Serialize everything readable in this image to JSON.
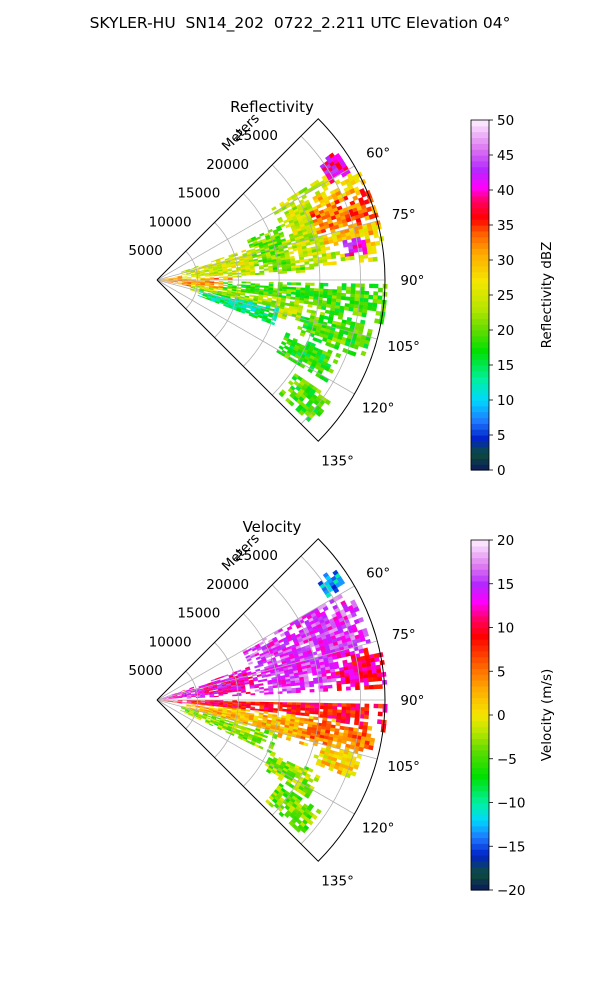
{
  "suptitle": "SKYLER-HU  SN14_202  0722_2.211 UTC Elevation 04°",
  "chart_data": [
    {
      "type": "polar_sector_radar",
      "title": "Reflectivity",
      "radial_axis_label": "Meters",
      "r_ticks": [
        5000,
        10000,
        15000,
        20000,
        25000
      ],
      "r_tick_labels": [
        "5000",
        "10000",
        "15000",
        "20000",
        "25000"
      ],
      "r_max": 28000,
      "theta_range_deg": [
        45,
        135
      ],
      "theta_ticks": [
        60,
        75,
        90,
        105,
        120,
        135
      ],
      "theta_tick_labels": [
        "60°",
        "75°",
        "90°",
        "105°",
        "120°",
        "135°"
      ],
      "grid": true,
      "colorbar": {
        "label": "Reflectivity dBZ",
        "range": [
          0,
          50
        ],
        "ticks": [
          0,
          5,
          10,
          15,
          20,
          25,
          30,
          35,
          40,
          45,
          50
        ],
        "tick_labels": [
          "0",
          "5",
          "10",
          "15",
          "20",
          "25",
          "30",
          "35",
          "40",
          "45",
          "50"
        ],
        "stops": [
          {
            "v": 0,
            "c": "#0a1a5c"
          },
          {
            "v": 2.5,
            "c": "#0d4d3a"
          },
          {
            "v": 4.5,
            "c": "#0022c8"
          },
          {
            "v": 7,
            "c": "#1e78ff"
          },
          {
            "v": 10,
            "c": "#00d7ff"
          },
          {
            "v": 13,
            "c": "#00f0a0"
          },
          {
            "v": 17,
            "c": "#00e000"
          },
          {
            "v": 20,
            "c": "#60dc00"
          },
          {
            "v": 23,
            "c": "#b4e600"
          },
          {
            "v": 27,
            "c": "#f5e600"
          },
          {
            "v": 31,
            "c": "#ffaa00"
          },
          {
            "v": 34,
            "c": "#ff5a00"
          },
          {
            "v": 36,
            "c": "#ff0000"
          },
          {
            "v": 38.5,
            "c": "#ff0064"
          },
          {
            "v": 40.5,
            "c": "#ff00ff"
          },
          {
            "v": 43,
            "c": "#b428ff"
          },
          {
            "v": 46,
            "c": "#dc78f0"
          },
          {
            "v": 50,
            "c": "#fff0ff"
          }
        ]
      },
      "echo_regions": [
        {
          "r0": 0,
          "r1": 9000,
          "t0": 80,
          "t1": 100,
          "v": 31
        },
        {
          "r0": 3000,
          "r1": 13000,
          "t0": 71,
          "t1": 87,
          "v": 25
        },
        {
          "r0": 12000,
          "r1": 19000,
          "t0": 66,
          "t1": 86,
          "v": 21
        },
        {
          "r0": 16000,
          "r1": 27000,
          "t0": 58,
          "t1": 84,
          "v": 24
        },
        {
          "r0": 21000,
          "r1": 28000,
          "t0": 62,
          "t1": 80,
          "v": 29
        },
        {
          "r0": 20000,
          "r1": 28000,
          "t0": 66,
          "t1": 74,
          "v": 33
        },
        {
          "r0": 24000,
          "r1": 27000,
          "t0": 54,
          "t1": 60,
          "v": 40
        },
        {
          "r0": 23000,
          "r1": 26000,
          "t0": 78,
          "t1": 82,
          "v": 41
        },
        {
          "r0": 8000,
          "r1": 28000,
          "t0": 91,
          "t1": 100,
          "v": 19
        },
        {
          "r0": 4000,
          "r1": 19000,
          "t0": 98,
          "t1": 106,
          "v": 23
        },
        {
          "r0": 5000,
          "r1": 15000,
          "t0": 103,
          "t1": 110,
          "v": 14
        },
        {
          "r0": 18000,
          "r1": 27000,
          "t0": 100,
          "t1": 110,
          "v": 19
        },
        {
          "r0": 17000,
          "r1": 24000,
          "t0": 112,
          "t1": 120,
          "v": 18
        },
        {
          "r0": 20000,
          "r1": 26000,
          "t0": 124,
          "t1": 132,
          "v": 19
        }
      ],
      "data_gaps": [
        {
          "r0": 10000,
          "r1": 28000,
          "t0": 87,
          "t1": 90
        }
      ]
    },
    {
      "type": "polar_sector_radar",
      "title": "Velocity",
      "radial_axis_label": "Meters",
      "r_ticks": [
        5000,
        10000,
        15000,
        20000,
        25000
      ],
      "r_tick_labels": [
        "5000",
        "10000",
        "15000",
        "20000",
        "25000"
      ],
      "r_max": 28000,
      "theta_range_deg": [
        45,
        135
      ],
      "theta_ticks": [
        60,
        75,
        90,
        105,
        120,
        135
      ],
      "theta_tick_labels": [
        "60°",
        "75°",
        "90°",
        "105°",
        "120°",
        "135°"
      ],
      "grid": true,
      "colorbar": {
        "label": "Velocity (m/s)",
        "range": [
          -20,
          20
        ],
        "ticks": [
          -20,
          -15,
          -10,
          -5,
          0,
          5,
          10,
          15,
          20
        ],
        "tick_labels": [
          "−20",
          "−15",
          "−10",
          "−5",
          "0",
          "5",
          "10",
          "15",
          "20"
        ],
        "stops": [
          {
            "v": -20,
            "c": "#0a1a5c"
          },
          {
            "v": -18,
            "c": "#0d4d3a"
          },
          {
            "v": -16,
            "c": "#0022c8"
          },
          {
            "v": -14,
            "c": "#1e78ff"
          },
          {
            "v": -12,
            "c": "#00d7ff"
          },
          {
            "v": -10,
            "c": "#00f0a0"
          },
          {
            "v": -7,
            "c": "#00e000"
          },
          {
            "v": -4,
            "c": "#60dc00"
          },
          {
            "v": -2,
            "c": "#b4e600"
          },
          {
            "v": 0,
            "c": "#f5e600"
          },
          {
            "v": 3,
            "c": "#ffaa00"
          },
          {
            "v": 6,
            "c": "#ff5a00"
          },
          {
            "v": 9,
            "c": "#ff0000"
          },
          {
            "v": 11,
            "c": "#ff0064"
          },
          {
            "v": 13,
            "c": "#ff00ff"
          },
          {
            "v": 15,
            "c": "#b428ff"
          },
          {
            "v": 17,
            "c": "#dc78f0"
          },
          {
            "v": 20,
            "c": "#fff0ff"
          }
        ]
      },
      "echo_regions": [
        {
          "r0": 0,
          "r1": 12000,
          "t0": 70,
          "t1": 86,
          "v": 13
        },
        {
          "r0": 12000,
          "r1": 27000,
          "t0": 60,
          "t1": 87,
          "v": 15
        },
        {
          "r0": 22000,
          "r1": 28000,
          "t0": 76,
          "t1": 86,
          "v": 11
        },
        {
          "r0": 24000,
          "r1": 27000,
          "t0": 53,
          "t1": 58,
          "v": -13
        },
        {
          "r0": 0,
          "r1": 28000,
          "t0": 90,
          "t1": 97,
          "v": 9
        },
        {
          "r0": 3000,
          "r1": 22000,
          "t0": 96,
          "t1": 106,
          "v": 2
        },
        {
          "r0": 18000,
          "r1": 27000,
          "t0": 97,
          "t1": 104,
          "v": 5
        },
        {
          "r0": 3000,
          "r1": 15000,
          "t0": 105,
          "t1": 114,
          "v": -3
        },
        {
          "r0": 20000,
          "r1": 26000,
          "t0": 105,
          "t1": 111,
          "v": 1
        },
        {
          "r0": 15000,
          "r1": 22000,
          "t0": 114,
          "t1": 122,
          "v": -3
        },
        {
          "r0": 18000,
          "r1": 24000,
          "t0": 124,
          "t1": 132,
          "v": -4
        }
      ],
      "data_gaps": [
        {
          "r0": 10000,
          "r1": 28000,
          "t0": 87,
          "t1": 90
        }
      ]
    }
  ]
}
